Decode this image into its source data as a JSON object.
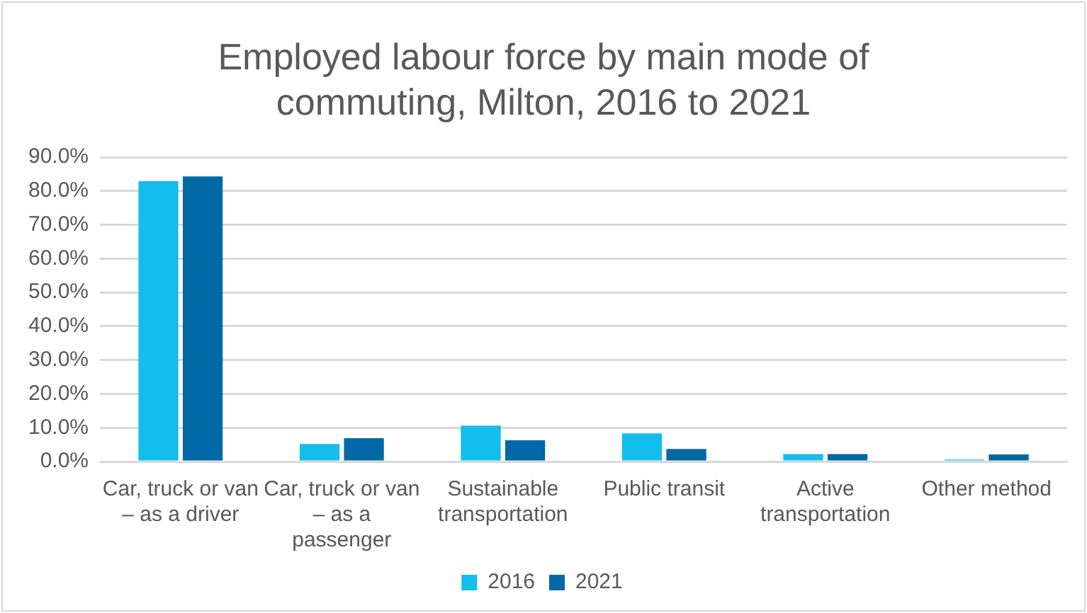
{
  "chart_data": {
    "type": "bar",
    "title": "Employed labour force by main mode of commuting, Milton, 2016 to 2021",
    "categories": [
      "Car, truck or van – as a driver",
      "Car, truck or van – as a passenger",
      "Sustainable transportation",
      "Public transit",
      "Active transportation",
      "Other method"
    ],
    "series": [
      {
        "name": "2016",
        "color": "#13bdee",
        "values": [
          82.9,
          5.2,
          10.6,
          8.3,
          2.2,
          0.6
        ]
      },
      {
        "name": "2021",
        "color": "#0069a6",
        "values": [
          84.3,
          6.9,
          6.3,
          3.7,
          2.2,
          2.1
        ]
      }
    ],
    "ylim": [
      0,
      90
    ],
    "yticks": [
      {
        "value": 0,
        "label": "0.0%"
      },
      {
        "value": 10,
        "label": "10.0%"
      },
      {
        "value": 20,
        "label": "20.0%"
      },
      {
        "value": 30,
        "label": "30.0%"
      },
      {
        "value": 40,
        "label": "40.0%"
      },
      {
        "value": 50,
        "label": "50.0%"
      },
      {
        "value": 60,
        "label": "60.0%"
      },
      {
        "value": 70,
        "label": "70.0%"
      },
      {
        "value": 80,
        "label": "80.0%"
      },
      {
        "value": 90,
        "label": "90.0%"
      }
    ],
    "grid": "y",
    "legend": "bottom"
  }
}
